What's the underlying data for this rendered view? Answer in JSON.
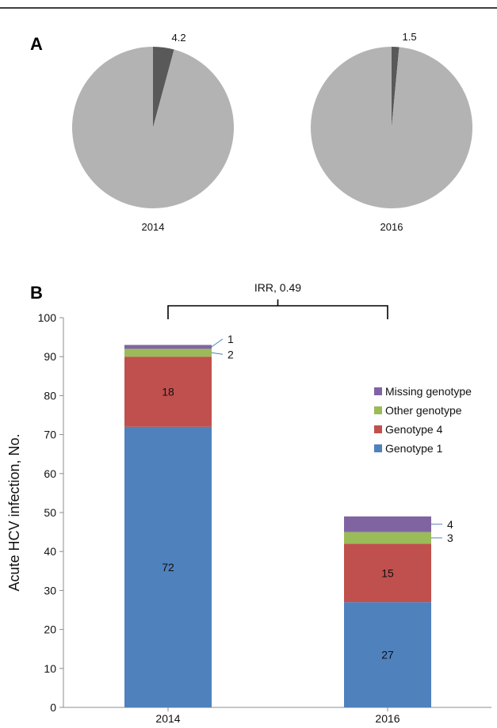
{
  "panel_labels": {
    "a": "A",
    "b": "B"
  },
  "colors": {
    "pie_main": "#b3b3b3",
    "pie_slice": "#595959",
    "genotype_1": "#4f81bd",
    "genotype_4": "#c0504d",
    "other_genotype": "#9bbb59",
    "missing_genotype": "#8064a2",
    "leader_line": "#4f81bd",
    "axis": "#8c8c8c"
  },
  "chart_data": [
    {
      "type": "pie",
      "panel": "A",
      "caption": "2014",
      "slices": [
        {
          "value": 4.2,
          "label": "4.2",
          "color": "#595959"
        },
        {
          "value": 95.8,
          "label": "",
          "color": "#b3b3b3"
        }
      ]
    },
    {
      "type": "pie",
      "panel": "A",
      "caption": "2016",
      "slices": [
        {
          "value": 1.5,
          "label": "1.5",
          "color": "#595959"
        },
        {
          "value": 98.5,
          "label": "",
          "color": "#b3b3b3"
        }
      ]
    },
    {
      "type": "bar",
      "stacked": true,
      "panel": "B",
      "categories": [
        "2014",
        "2016"
      ],
      "ylabel": "Acute HCV infection, No.",
      "xlabel": "",
      "ylim": [
        0,
        100
      ],
      "yticks": [
        "0",
        "10",
        "20",
        "30",
        "40",
        "50",
        "60",
        "70",
        "80",
        "90",
        "100"
      ],
      "grid": false,
      "legend_position": "right",
      "series": [
        {
          "name": "Genotype 1",
          "color": "#4f81bd",
          "values": [
            72,
            27
          ],
          "labels": [
            "72",
            "27"
          ]
        },
        {
          "name": "Genotype 4",
          "color": "#c0504d",
          "values": [
            18,
            15
          ],
          "labels": [
            "18",
            "15"
          ]
        },
        {
          "name": "Other genotype",
          "color": "#9bbb59",
          "values": [
            2,
            3
          ],
          "labels": [
            "2",
            "3"
          ]
        },
        {
          "name": "Missing genotype",
          "color": "#8064a2",
          "values": [
            1,
            4
          ],
          "labels": [
            "1",
            "4"
          ]
        }
      ],
      "annotation": {
        "text": "IRR, 0.49"
      }
    }
  ]
}
